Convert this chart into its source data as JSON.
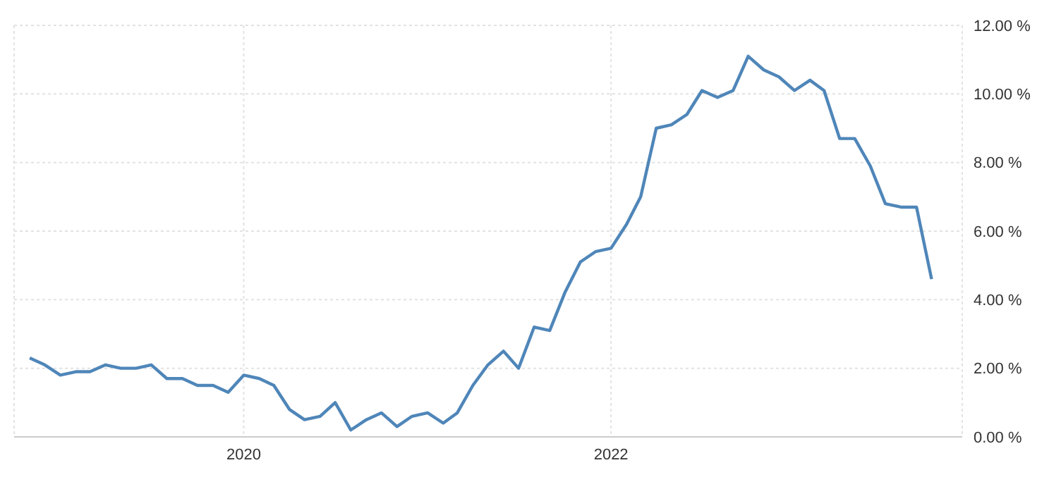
{
  "chart_data": {
    "type": "line",
    "x": [
      "2018-11",
      "2018-12",
      "2019-01",
      "2019-02",
      "2019-03",
      "2019-04",
      "2019-05",
      "2019-06",
      "2019-07",
      "2019-08",
      "2019-09",
      "2019-10",
      "2019-11",
      "2019-12",
      "2020-01",
      "2020-02",
      "2020-03",
      "2020-04",
      "2020-05",
      "2020-06",
      "2020-07",
      "2020-08",
      "2020-09",
      "2020-10",
      "2020-11",
      "2020-12",
      "2021-01",
      "2021-02",
      "2021-03",
      "2021-04",
      "2021-05",
      "2021-06",
      "2021-07",
      "2021-08",
      "2021-09",
      "2021-10",
      "2021-11",
      "2021-12",
      "2022-01",
      "2022-02",
      "2022-03",
      "2022-04",
      "2022-05",
      "2022-06",
      "2022-07",
      "2022-08",
      "2022-09",
      "2022-10",
      "2022-11",
      "2022-12",
      "2023-01",
      "2023-02",
      "2023-03",
      "2023-04",
      "2023-05",
      "2023-06",
      "2023-07",
      "2023-08",
      "2023-09",
      "2023-10"
    ],
    "series": [
      {
        "color": "#4f86b9",
        "values": [
          2.3,
          2.1,
          1.8,
          1.9,
          1.9,
          2.1,
          2.0,
          2.0,
          2.1,
          1.7,
          1.7,
          1.5,
          1.5,
          1.3,
          1.8,
          1.7,
          1.5,
          0.8,
          0.5,
          0.6,
          1.0,
          0.2,
          0.5,
          0.7,
          0.3,
          0.6,
          0.7,
          0.4,
          0.7,
          1.5,
          2.1,
          2.5,
          2.0,
          3.2,
          3.1,
          4.2,
          5.1,
          5.4,
          5.5,
          6.2,
          7.0,
          9.0,
          9.1,
          9.4,
          10.1,
          9.9,
          10.1,
          11.1,
          10.7,
          10.5,
          10.1,
          10.4,
          10.1,
          8.7,
          8.7,
          7.9,
          6.8,
          6.7,
          6.7,
          4.6
        ]
      }
    ],
    "xlim": [
      "2018-10",
      "2023-12"
    ],
    "xticks": [
      {
        "value": "2020-01",
        "label": "2020"
      },
      {
        "value": "2022-01",
        "label": "2022"
      }
    ],
    "ylim": [
      0,
      12
    ],
    "yticks": [
      {
        "value": 0,
        "label": "0.00 %"
      },
      {
        "value": 2,
        "label": "2.00 %"
      },
      {
        "value": 4,
        "label": "4.00 %"
      },
      {
        "value": 6,
        "label": "6.00 %"
      },
      {
        "value": 8,
        "label": "8.00 %"
      },
      {
        "value": 10,
        "label": "10.00 %"
      },
      {
        "value": 12,
        "label": "12.00 %"
      }
    ],
    "grid": true,
    "legend": false,
    "marker": "none",
    "line_style": "solid"
  }
}
